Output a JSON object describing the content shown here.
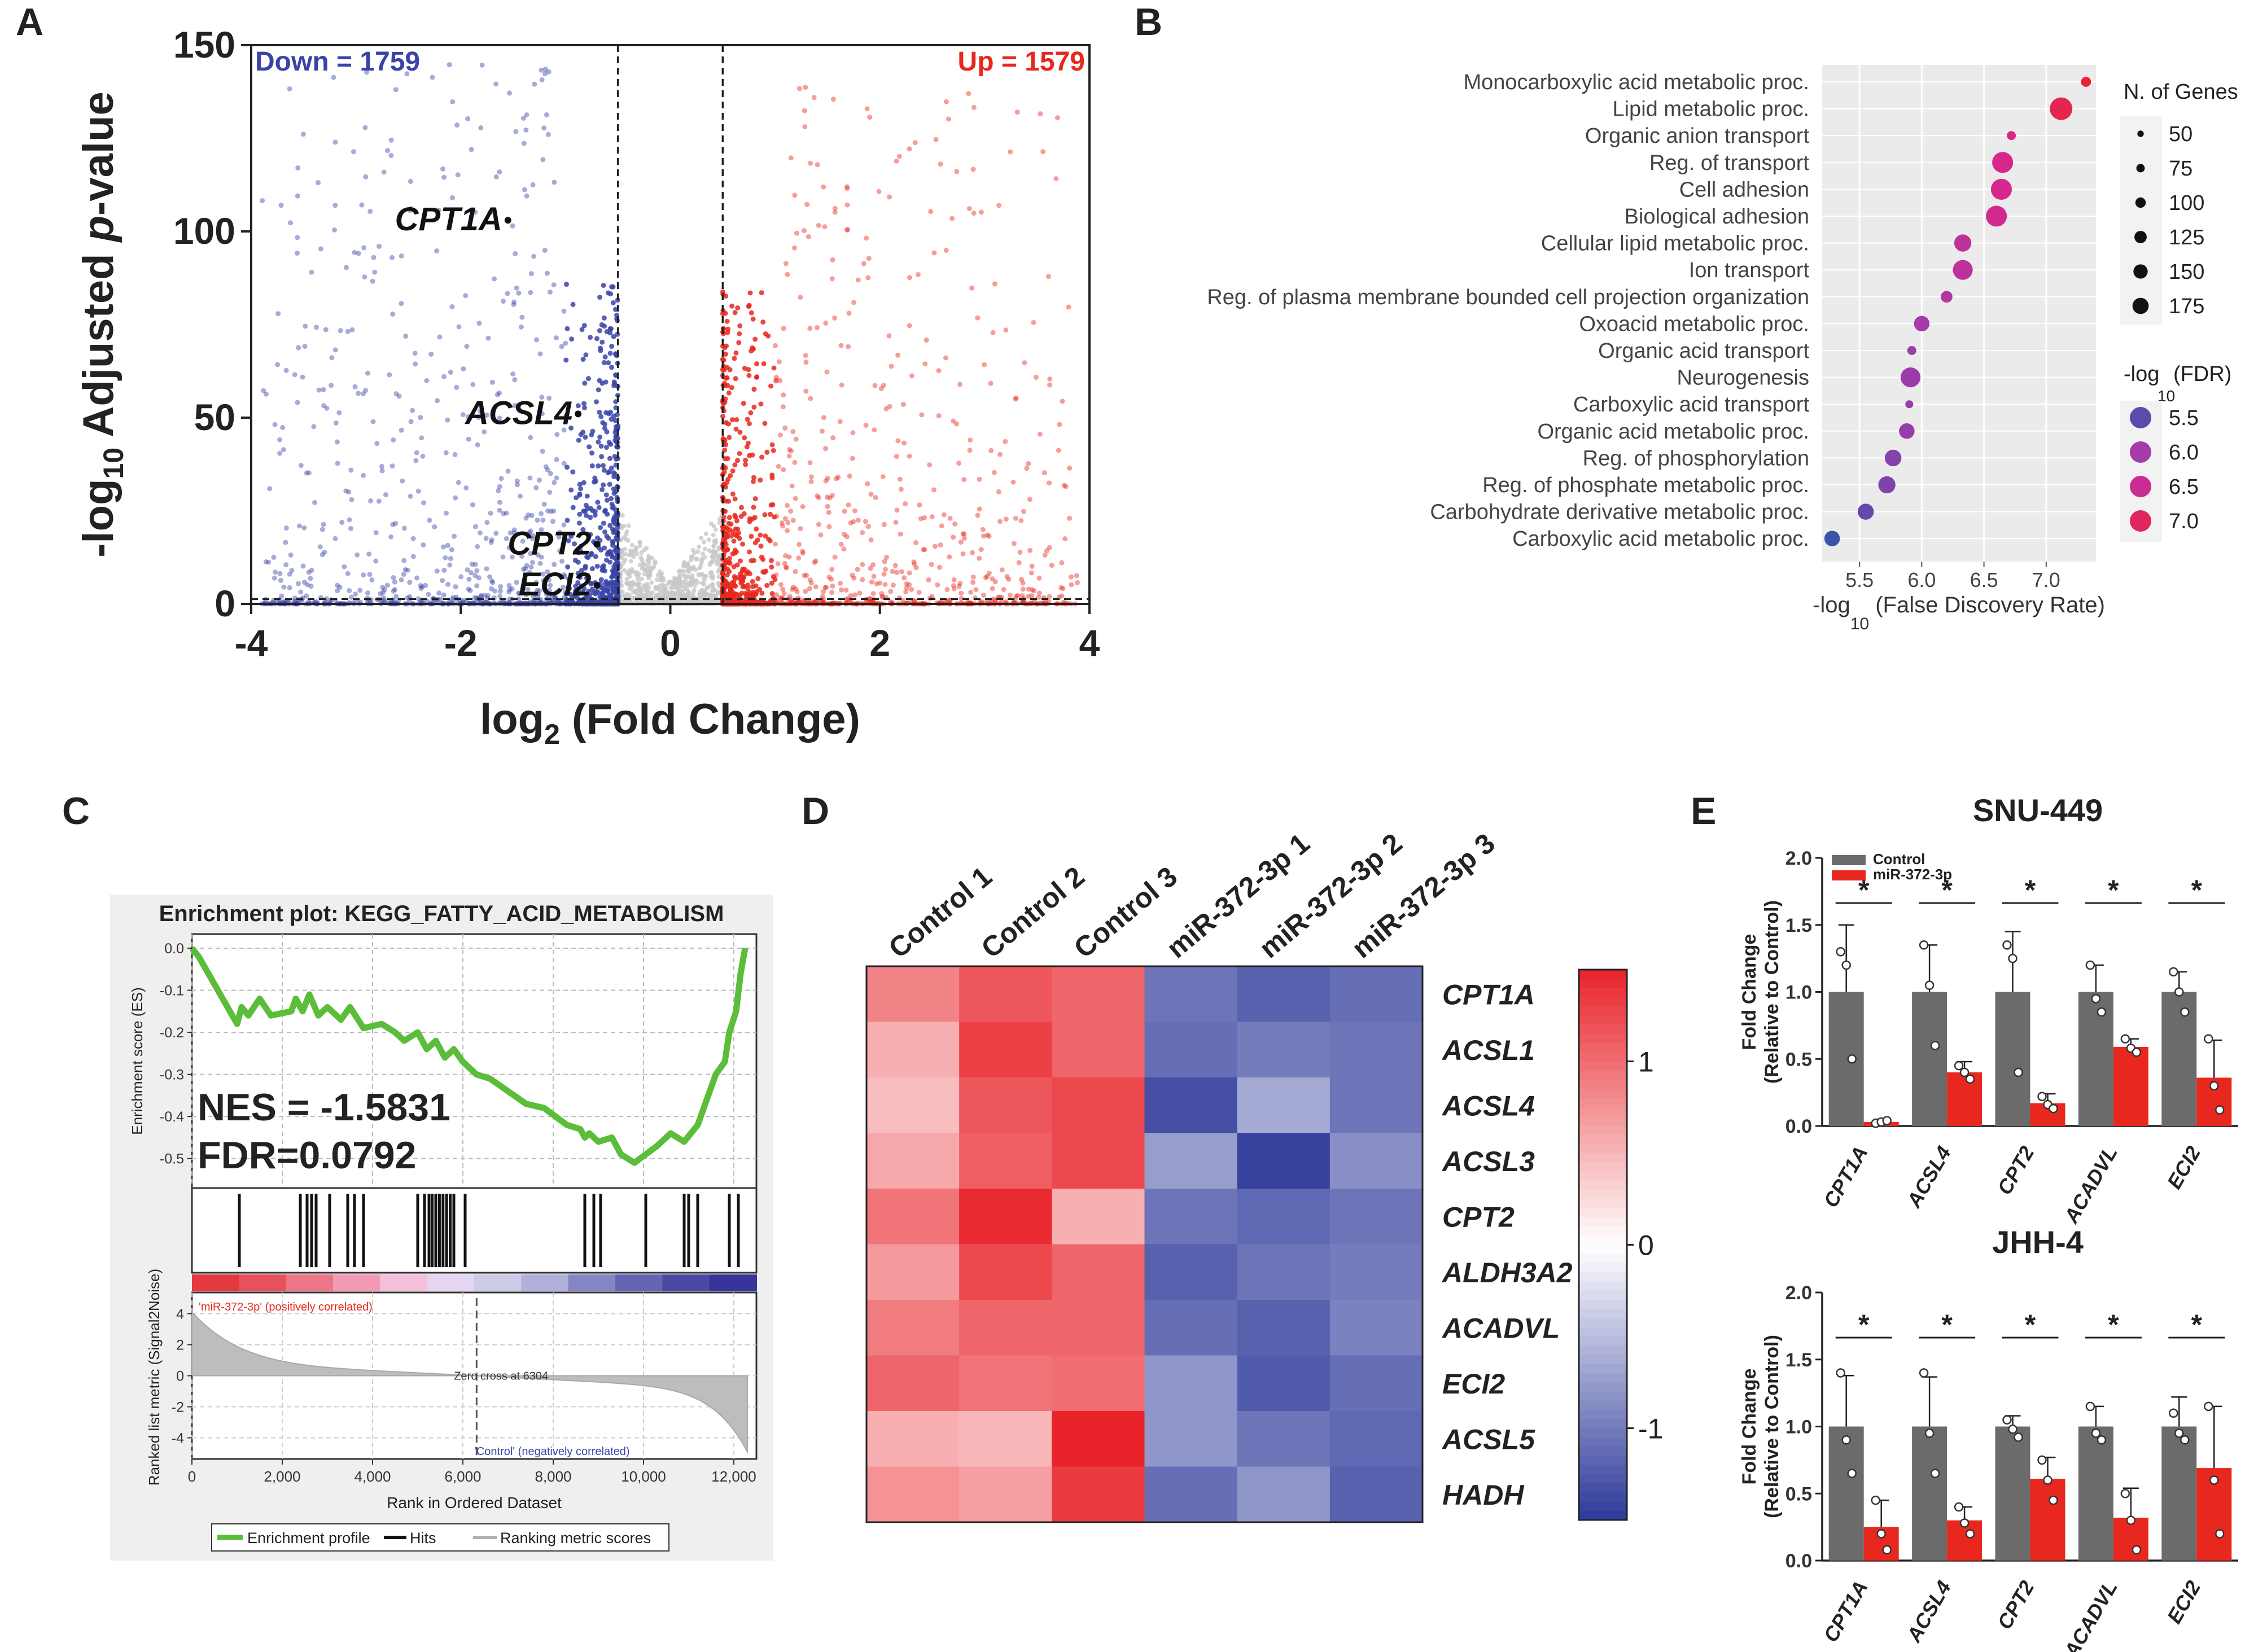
{
  "colors": {
    "up": "#e8281e",
    "down": "#3a44a8",
    "ns": "#c8c8c8",
    "heat_high": "#e8242a",
    "heat_low": "#2e3a9a",
    "gray_bar": "#6b6b6b",
    "red_bar": "#e8281e",
    "es_line": "#5bbd3a",
    "gsea_bg": "#efefef"
  },
  "panels": {
    "A": "A",
    "B": "B",
    "C": "C",
    "D": "D",
    "E": "E"
  },
  "chart_data": [
    {
      "id": "volcano",
      "type": "scatter",
      "xlabel_main": "log",
      "xlabel_sub": "2",
      "xlabel_rest": " (Fold Change)",
      "ylabel_pre": "-log",
      "ylabel_sub": "10",
      "ylabel_mid": " Adjusted ",
      "ylabel_it": "p",
      "ylabel_post": "-value",
      "xlim": [
        -4,
        4
      ],
      "ylim": [
        0,
        150
      ],
      "xticks": [
        "-4",
        "-2",
        "0",
        "2",
        "4"
      ],
      "xtick_values": [
        -4,
        -2,
        0,
        2,
        4
      ],
      "yticks": [
        "0",
        "50",
        "100",
        "150"
      ],
      "ytick_values": [
        0,
        50,
        100,
        150
      ],
      "fc_threshold": 0.5,
      "padj_threshold_y": 1.3,
      "down_label": "Down = 1759",
      "up_label": "Up = 1579",
      "highlighted": [
        {
          "label": "CPT1A",
          "x": -1.55,
          "y": 103
        },
        {
          "label": "ACSL4",
          "x": -0.88,
          "y": 51
        },
        {
          "label": "CPT2",
          "x": -0.7,
          "y": 16
        },
        {
          "label": "ECI2",
          "x": -0.7,
          "y": 5
        }
      ]
    },
    {
      "id": "go_dotplot",
      "type": "scatter",
      "xlabel": "-log",
      "xlabel_sub": "10",
      "xlabel_rest": " (False Discovery Rate)",
      "xlim": [
        5.2,
        7.4
      ],
      "xticks": [
        "5.5",
        "6.0",
        "6.5",
        "7.0"
      ],
      "xtick_values": [
        5.5,
        6.0,
        6.5,
        7.0
      ],
      "terms": [
        {
          "term": "Monocarboxylic acid metabolic proc.",
          "fdr": 7.32,
          "genes": 60
        },
        {
          "term": "Lipid metabolic proc.",
          "fdr": 7.12,
          "genes": 175
        },
        {
          "term": "Organic anion transport",
          "fdr": 6.72,
          "genes": 50
        },
        {
          "term": "Reg. of transport",
          "fdr": 6.65,
          "genes": 160
        },
        {
          "term": "Cell adhesion",
          "fdr": 6.64,
          "genes": 160
        },
        {
          "term": "Biological adhesion",
          "fdr": 6.6,
          "genes": 160
        },
        {
          "term": "Cellular lipid metabolic proc.",
          "fdr": 6.33,
          "genes": 125
        },
        {
          "term": "Ion transport",
          "fdr": 6.33,
          "genes": 150
        },
        {
          "term": "Reg. of plasma membrane bounded cell projection organization",
          "fdr": 6.2,
          "genes": 75
        },
        {
          "term": "Oxoacid metabolic proc.",
          "fdr": 6.0,
          "genes": 110
        },
        {
          "term": "Organic acid transport",
          "fdr": 5.92,
          "genes": 50
        },
        {
          "term": "Neurogenesis",
          "fdr": 5.91,
          "genes": 150
        },
        {
          "term": "Carboxylic acid transport",
          "fdr": 5.9,
          "genes": 40
        },
        {
          "term": "Organic acid metabolic proc.",
          "fdr": 5.88,
          "genes": 110
        },
        {
          "term": "Reg. of phosphorylation",
          "fdr": 5.77,
          "genes": 120
        },
        {
          "term": "Reg. of phosphate metabolic proc.",
          "fdr": 5.72,
          "genes": 125
        },
        {
          "term": "Carbohydrate derivative metabolic proc.",
          "fdr": 5.55,
          "genes": 115
        },
        {
          "term": "Carboxylic acid metabolic proc.",
          "fdr": 5.28,
          "genes": 110
        }
      ],
      "size_legend_title": "N. of Genes",
      "size_legend": [
        {
          "label": "50",
          "value": 50
        },
        {
          "label": "75",
          "value": 75
        },
        {
          "label": "100",
          "value": 100
        },
        {
          "label": "125",
          "value": 125
        },
        {
          "label": "150",
          "value": 150
        },
        {
          "label": "175",
          "value": 175
        }
      ],
      "color_legend_title": "-log",
      "color_legend_sub": "10",
      "color_legend_rest": "(FDR)",
      "color_legend": [
        {
          "label": "5.5",
          "value": 5.5
        },
        {
          "label": "6.0",
          "value": 6.0
        },
        {
          "label": "6.5",
          "value": 6.5
        },
        {
          "label": "7.0",
          "value": 7.0
        }
      ]
    },
    {
      "id": "gsea",
      "type": "line",
      "title": "Enrichment plot: KEGG_FATTY_ACID_METABOLISM",
      "ylabel": "Enrichment score (ES)",
      "ylabel2": "Ranked list metric (Signal2Noise)",
      "xlabel": "Rank in Ordered Dataset",
      "nes_text": "NES = -1.5831",
      "fdr_text": "FDR=0.0792",
      "es_ylim": [
        -0.55,
        0.0
      ],
      "es_yticks": [
        "0.0",
        "-0.1",
        "-0.2",
        "-0.3",
        "-0.4",
        "-0.5"
      ],
      "es_ytick_values": [
        0.0,
        -0.1,
        -0.2,
        -0.3,
        -0.4,
        -0.5
      ],
      "metric_yticks": [
        "4",
        "2",
        "0",
        "-2",
        "-4"
      ],
      "metric_ytick_values": [
        4,
        2,
        0,
        -2,
        -4
      ],
      "xlim": [
        0,
        12500
      ],
      "xticks": [
        "0",
        "2,000",
        "4,000",
        "6,000",
        "8,000",
        "10,000",
        "12,000"
      ],
      "xtick_values": [
        0,
        2000,
        4000,
        6000,
        8000,
        10000,
        12000
      ],
      "es_curve_x": [
        0,
        150,
        1000,
        1100,
        1250,
        1500,
        1750,
        2200,
        2300,
        2450,
        2600,
        2800,
        3000,
        3300,
        3500,
        3800,
        4200,
        4500,
        4700,
        5000,
        5200,
        5400,
        5600,
        5800,
        6000,
        6300,
        6600,
        7000,
        7400,
        7800,
        8300,
        8600,
        8700,
        8800,
        9000,
        9300,
        9500,
        9800,
        10050,
        10300,
        10600,
        10900,
        11200,
        11400,
        11600,
        11800,
        11900,
        12050,
        12150,
        12250
      ],
      "es_curve_y": [
        0.0,
        -0.02,
        -0.18,
        -0.14,
        -0.16,
        -0.12,
        -0.16,
        -0.15,
        -0.12,
        -0.15,
        -0.11,
        -0.16,
        -0.14,
        -0.17,
        -0.14,
        -0.19,
        -0.18,
        -0.2,
        -0.22,
        -0.2,
        -0.24,
        -0.22,
        -0.26,
        -0.24,
        -0.27,
        -0.3,
        -0.31,
        -0.34,
        -0.37,
        -0.38,
        -0.42,
        -0.43,
        -0.45,
        -0.44,
        -0.46,
        -0.45,
        -0.49,
        -0.51,
        -0.49,
        -0.47,
        -0.44,
        -0.46,
        -0.42,
        -0.36,
        -0.3,
        -0.27,
        -0.2,
        -0.15,
        -0.06,
        0.0
      ],
      "hits": [
        1050,
        2400,
        2550,
        2650,
        2750,
        3050,
        3450,
        3600,
        3800,
        5000,
        5150,
        5250,
        5320,
        5400,
        5480,
        5560,
        5640,
        5720,
        5800,
        6050,
        8700,
        8900,
        9050,
        10050,
        10900,
        11000,
        11200,
        11900,
        12100
      ],
      "pos_label": "'miR-372-3p' (positively correlated)",
      "neg_label": "'Control' (negatively correlated)",
      "zero_cross": "Zero cross at 6304",
      "zero_cross_value": 6304,
      "legend": [
        "Enrichment profile",
        "Hits",
        "Ranking metric scores"
      ]
    },
    {
      "id": "heatmap",
      "type": "heatmap",
      "columns": [
        "Control 1",
        "Control 2",
        "Control 3",
        "miR-372-3p 1",
        "miR-372-3p 2",
        "miR-372-3p 3"
      ],
      "rows": [
        "CPT1A",
        "ACSL1",
        "ACSL4",
        "ACSL3",
        "CPT2",
        "ALDH3A2",
        "ACADVL",
        "ECI2",
        "ACSL5",
        "HADH"
      ],
      "values": [
        [
          0.85,
          1.15,
          1.05,
          -1.05,
          -1.2,
          -1.1
        ],
        [
          0.55,
          1.3,
          1.05,
          -1.1,
          -1.0,
          -1.05
        ],
        [
          0.45,
          1.15,
          1.25,
          -1.35,
          -0.65,
          -1.05
        ],
        [
          0.6,
          1.1,
          1.25,
          -0.75,
          -1.45,
          -0.85
        ],
        [
          0.95,
          1.45,
          0.55,
          -1.05,
          -1.15,
          -1.05
        ],
        [
          0.7,
          1.25,
          1.05,
          -1.2,
          -1.05,
          -1.0
        ],
        [
          0.9,
          1.05,
          1.05,
          -1.1,
          -1.2,
          -0.95
        ],
        [
          1.05,
          0.95,
          1.0,
          -0.8,
          -1.25,
          -1.1
        ],
        [
          0.55,
          0.5,
          1.5,
          -0.8,
          -1.05,
          -1.15
        ],
        [
          0.75,
          0.65,
          1.35,
          -1.1,
          -0.8,
          -1.2
        ]
      ],
      "scale_ticks": [
        "1",
        "0",
        "-1"
      ],
      "scale_tick_values": [
        1,
        0,
        -1
      ],
      "scale_range": [
        -1.5,
        1.5
      ]
    },
    {
      "id": "qpcr_snu449",
      "type": "bar",
      "title": "SNU-449",
      "ylabel": "Fold Change",
      "ylabel2": "(Relative to Control)",
      "categories": [
        "CPT1A",
        "ACSL4",
        "CPT2",
        "ACADVL",
        "ECI2"
      ],
      "ylim": [
        0,
        2.0
      ],
      "yticks": [
        "0.0",
        "0.5",
        "1.0",
        "1.5",
        "2.0"
      ],
      "ytick_values": [
        0,
        0.5,
        1.0,
        1.5,
        2.0
      ],
      "legend": [
        "Control",
        "miR-372-3p"
      ],
      "significance": "*",
      "series": [
        {
          "name": "Control",
          "values": [
            1.0,
            1.0,
            1.0,
            1.0,
            1.0
          ],
          "err": [
            0.5,
            0.35,
            0.45,
            0.2,
            0.15
          ],
          "points": [
            [
              1.3,
              1.2,
              0.5
            ],
            [
              1.35,
              1.05,
              0.6
            ],
            [
              1.35,
              1.25,
              0.4
            ],
            [
              1.2,
              0.95,
              0.85
            ],
            [
              1.15,
              1.0,
              0.85
            ]
          ]
        },
        {
          "name": "miR-372-3p",
          "values": [
            0.03,
            0.4,
            0.17,
            0.59,
            0.36
          ],
          "err": [
            0.02,
            0.08,
            0.07,
            0.06,
            0.28
          ],
          "points": [
            [
              0.02,
              0.03,
              0.04
            ],
            [
              0.45,
              0.4,
              0.35
            ],
            [
              0.22,
              0.16,
              0.13
            ],
            [
              0.65,
              0.58,
              0.55
            ],
            [
              0.65,
              0.3,
              0.12
            ]
          ]
        }
      ]
    },
    {
      "id": "qpcr_jhh4",
      "type": "bar",
      "title": "JHH-4",
      "ylabel": "Fold Change",
      "ylabel2": "(Relative to Control)",
      "categories": [
        "CPT1A",
        "ACSL4",
        "CPT2",
        "ACADVL",
        "ECI2"
      ],
      "ylim": [
        0,
        2.0
      ],
      "yticks": [
        "0.0",
        "0.5",
        "1.0",
        "1.5",
        "2.0"
      ],
      "ytick_values": [
        0,
        0.5,
        1.0,
        1.5,
        2.0
      ],
      "significance": "*",
      "series": [
        {
          "name": "Control",
          "values": [
            1.0,
            1.0,
            1.0,
            1.0,
            1.0
          ],
          "err": [
            0.38,
            0.37,
            0.08,
            0.15,
            0.22
          ],
          "points": [
            [
              1.4,
              0.9,
              0.65
            ],
            [
              1.4,
              0.95,
              0.65
            ],
            [
              1.05,
              0.98,
              0.92
            ],
            [
              1.15,
              0.95,
              0.9
            ],
            [
              1.1,
              0.95,
              0.9
            ]
          ]
        },
        {
          "name": "miR-372-3p",
          "values": [
            0.25,
            0.3,
            0.61,
            0.32,
            0.69
          ],
          "err": [
            0.2,
            0.1,
            0.16,
            0.22,
            0.46
          ],
          "points": [
            [
              0.45,
              0.2,
              0.08
            ],
            [
              0.4,
              0.28,
              0.2
            ],
            [
              0.75,
              0.6,
              0.45
            ],
            [
              0.5,
              0.3,
              0.08
            ],
            [
              1.15,
              0.6,
              0.2
            ]
          ]
        }
      ]
    }
  ]
}
